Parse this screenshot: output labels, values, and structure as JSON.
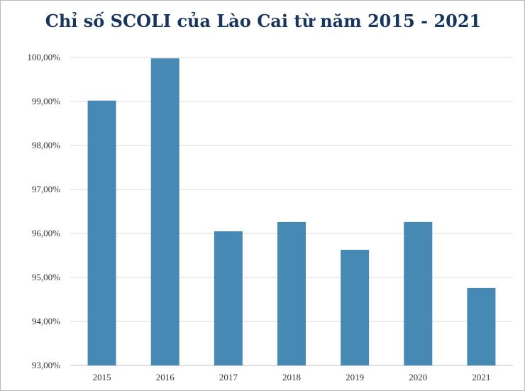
{
  "chart_data": {
    "type": "bar",
    "title": "Chỉ số SCOLI của Lào Cai từ năm 2015 - 2021",
    "categories": [
      "2015",
      "2016",
      "2017",
      "2018",
      "2019",
      "2020",
      "2021"
    ],
    "values": [
      99.02,
      99.98,
      96.05,
      96.26,
      95.63,
      96.26,
      94.76
    ],
    "ylim": [
      93,
      100
    ],
    "yticks": [
      "93,00%",
      "94,00%",
      "95,00%",
      "96,00%",
      "97,00%",
      "98,00%",
      "99,00%",
      "100,00%"
    ],
    "xlabel": "",
    "ylabel": "",
    "grid": true,
    "colors": {
      "bar": "#4689b4",
      "grid": "#d9d9d9",
      "title": "#17365d"
    }
  }
}
